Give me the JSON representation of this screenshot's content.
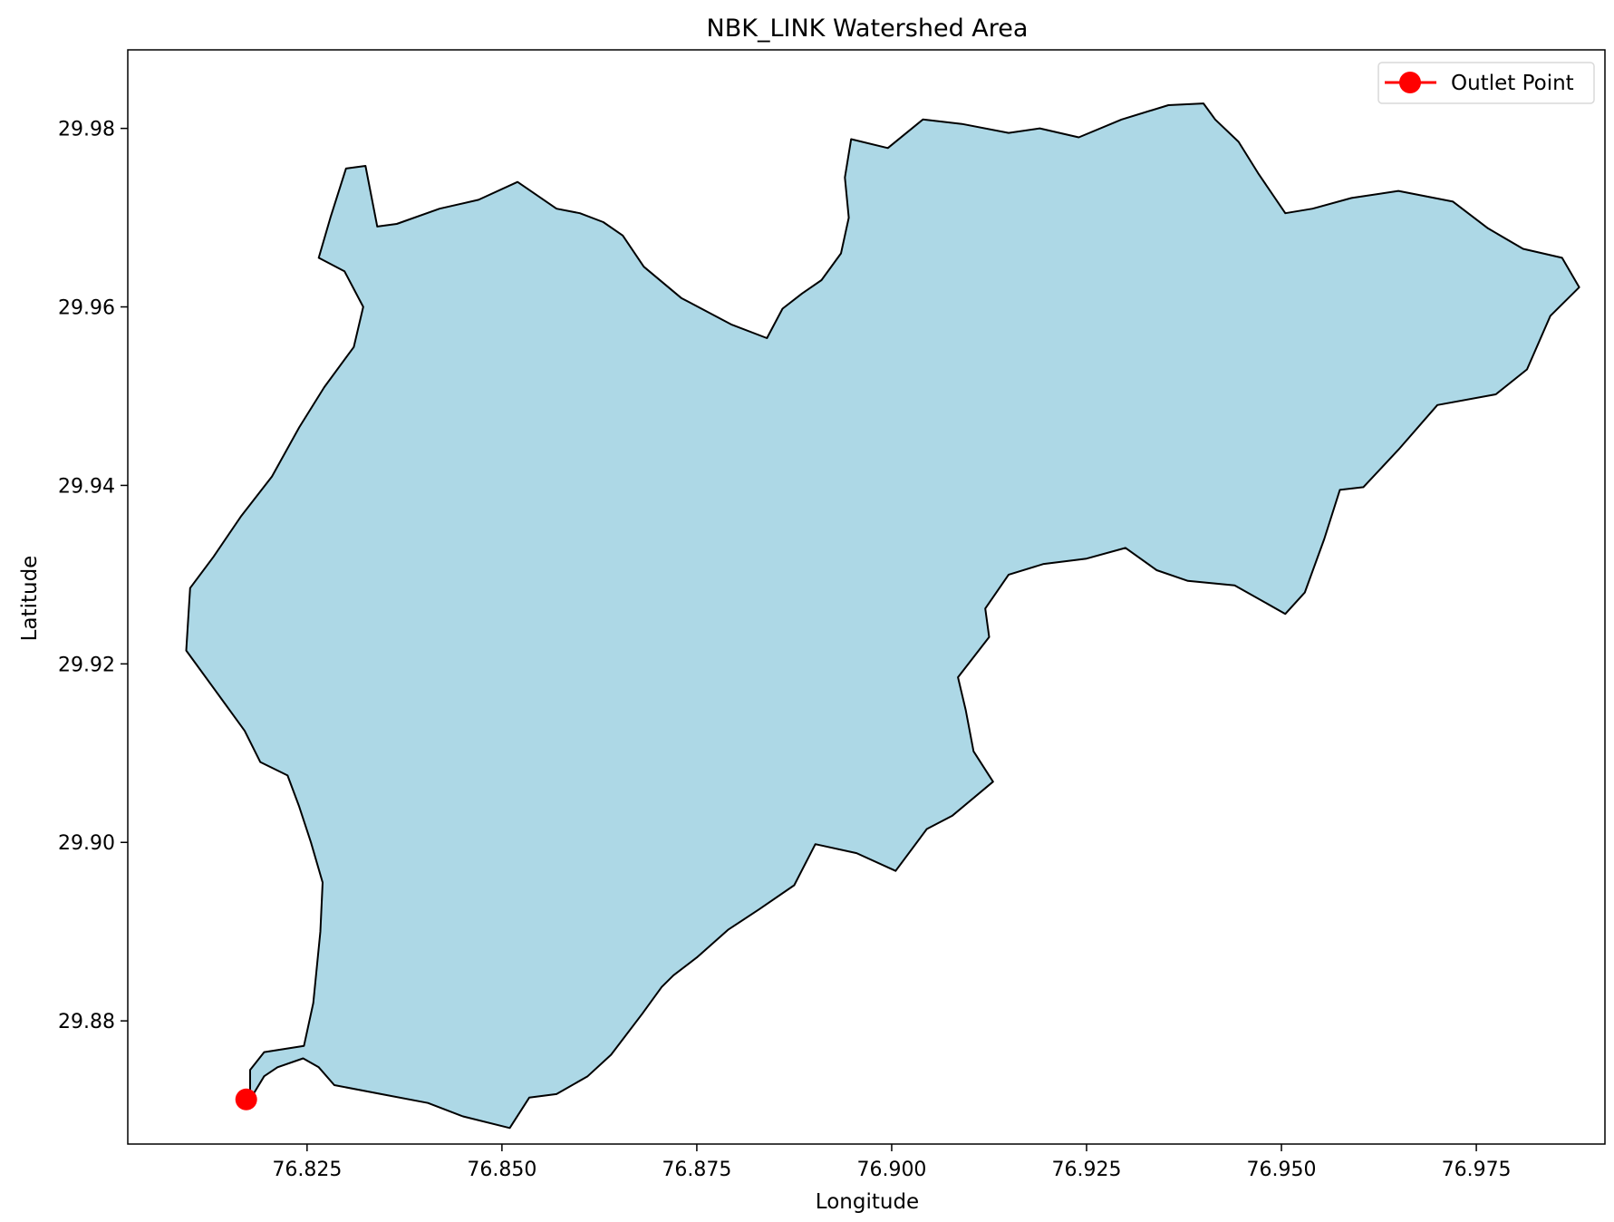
{
  "chart_data": {
    "type": "scatter",
    "title": "NBK_LINK Watershed Area",
    "xlabel": "Longitude",
    "ylabel": "Latitude",
    "xlim": [
      76.802,
      76.9915
    ],
    "ylim": [
      29.8662,
      29.9888
    ],
    "x_ticks": [
      "76.825",
      "76.850",
      "76.875",
      "76.900",
      "76.925",
      "76.950",
      "76.975"
    ],
    "x_tick_values": [
      76.825,
      76.85,
      76.875,
      76.9,
      76.925,
      76.95,
      76.975
    ],
    "y_ticks": [
      "29.88",
      "29.90",
      "29.92",
      "29.94",
      "29.96",
      "29.98"
    ],
    "y_tick_values": [
      29.88,
      29.9,
      29.92,
      29.94,
      29.96,
      29.98
    ],
    "grid": false,
    "legend": {
      "position": "top-right",
      "entries": [
        "Outlet Point"
      ]
    },
    "watershed": {
      "fill_color": "#add8e6",
      "edge_color": "#000000",
      "boundary": [
        [
          76.8177,
          29.8712
        ],
        [
          76.8195,
          29.8738
        ],
        [
          76.8212,
          29.8748
        ],
        [
          76.8245,
          29.8758
        ],
        [
          76.8265,
          29.8748
        ],
        [
          76.8285,
          29.8728
        ],
        [
          76.8345,
          29.8718
        ],
        [
          76.8405,
          29.8708
        ],
        [
          76.845,
          29.8693
        ],
        [
          76.851,
          29.868
        ],
        [
          76.8535,
          29.8714
        ],
        [
          76.857,
          29.8718
        ],
        [
          76.861,
          29.8738
        ],
        [
          76.864,
          29.8762
        ],
        [
          76.868,
          29.8808
        ],
        [
          76.8705,
          29.8838
        ],
        [
          76.872,
          29.8851
        ],
        [
          76.875,
          29.8871
        ],
        [
          76.879,
          29.8902
        ],
        [
          76.883,
          29.8925
        ],
        [
          76.8875,
          29.8952
        ],
        [
          76.8902,
          29.8998
        ],
        [
          76.8955,
          29.8988
        ],
        [
          76.9005,
          29.8968
        ],
        [
          76.9045,
          29.9015
        ],
        [
          76.9078,
          29.903
        ],
        [
          76.913,
          29.9068
        ],
        [
          76.9105,
          29.9102
        ],
        [
          76.9095,
          29.9148
        ],
        [
          76.9085,
          29.9185
        ],
        [
          76.9125,
          29.923
        ],
        [
          76.912,
          29.9262
        ],
        [
          76.915,
          29.93
        ],
        [
          76.9195,
          29.9312
        ],
        [
          76.925,
          29.9318
        ],
        [
          76.93,
          29.933
        ],
        [
          76.934,
          29.9305
        ],
        [
          76.938,
          29.9293
        ],
        [
          76.944,
          29.9288
        ],
        [
          76.9505,
          29.9256
        ],
        [
          76.953,
          29.928
        ],
        [
          76.9555,
          29.934
        ],
        [
          76.9575,
          29.9395
        ],
        [
          76.9605,
          29.9398
        ],
        [
          76.965,
          29.944
        ],
        [
          76.97,
          29.949
        ],
        [
          76.9775,
          29.9502
        ],
        [
          76.9815,
          29.953
        ],
        [
          76.9845,
          29.959
        ],
        [
          76.9882,
          29.9622
        ],
        [
          76.986,
          29.9655
        ],
        [
          76.981,
          29.9665
        ],
        [
          76.9765,
          29.9688
        ],
        [
          76.972,
          29.9718
        ],
        [
          76.965,
          29.973
        ],
        [
          76.959,
          29.9722
        ],
        [
          76.954,
          29.971
        ],
        [
          76.9505,
          29.9705
        ],
        [
          76.947,
          29.975
        ],
        [
          76.9445,
          29.9785
        ],
        [
          76.9415,
          29.981
        ],
        [
          76.94,
          29.9828
        ],
        [
          76.9355,
          29.9826
        ],
        [
          76.9295,
          29.981
        ],
        [
          76.924,
          29.979
        ],
        [
          76.919,
          29.98
        ],
        [
          76.915,
          29.9795
        ],
        [
          76.909,
          29.9805
        ],
        [
          76.904,
          29.981
        ],
        [
          76.8995,
          29.9778
        ],
        [
          76.8948,
          29.9788
        ],
        [
          76.894,
          29.9745
        ],
        [
          76.8945,
          29.97
        ],
        [
          76.8935,
          29.966
        ],
        [
          76.891,
          29.963
        ],
        [
          76.8885,
          29.9615
        ],
        [
          76.886,
          29.9598
        ],
        [
          76.884,
          29.9565
        ],
        [
          76.8795,
          29.958
        ],
        [
          76.873,
          29.961
        ],
        [
          76.8682,
          29.9645
        ],
        [
          76.8655,
          29.968
        ],
        [
          76.863,
          29.9695
        ],
        [
          76.86,
          29.9705
        ],
        [
          76.857,
          29.971
        ],
        [
          76.852,
          29.974
        ],
        [
          76.847,
          29.972
        ],
        [
          76.842,
          29.971
        ],
        [
          76.8365,
          29.9693
        ],
        [
          76.834,
          29.969
        ],
        [
          76.8325,
          29.9758
        ],
        [
          76.83,
          29.9755
        ],
        [
          76.828,
          29.97
        ],
        [
          76.8265,
          29.9655
        ],
        [
          76.8298,
          29.964
        ],
        [
          76.8322,
          29.96
        ],
        [
          76.831,
          29.9555
        ],
        [
          76.8272,
          29.951
        ],
        [
          76.824,
          29.9465
        ],
        [
          76.8205,
          29.941
        ],
        [
          76.8165,
          29.9365
        ],
        [
          76.813,
          29.932
        ],
        [
          76.81,
          29.9285
        ],
        [
          76.8095,
          29.9215
        ],
        [
          76.8145,
          29.9155
        ],
        [
          76.817,
          29.9125
        ],
        [
          76.819,
          29.909
        ],
        [
          76.8225,
          29.9075
        ],
        [
          76.824,
          29.904
        ],
        [
          76.8255,
          29.9
        ],
        [
          76.827,
          29.8955
        ],
        [
          76.8267,
          29.89
        ],
        [
          76.8258,
          29.882
        ],
        [
          76.8246,
          29.8772
        ],
        [
          76.8195,
          29.8765
        ],
        [
          76.8177,
          29.8745
        ]
      ]
    },
    "outlet_point": {
      "name": "Outlet Point",
      "lon": 76.8172,
      "lat": 29.8712,
      "color": "#ff0000"
    }
  }
}
